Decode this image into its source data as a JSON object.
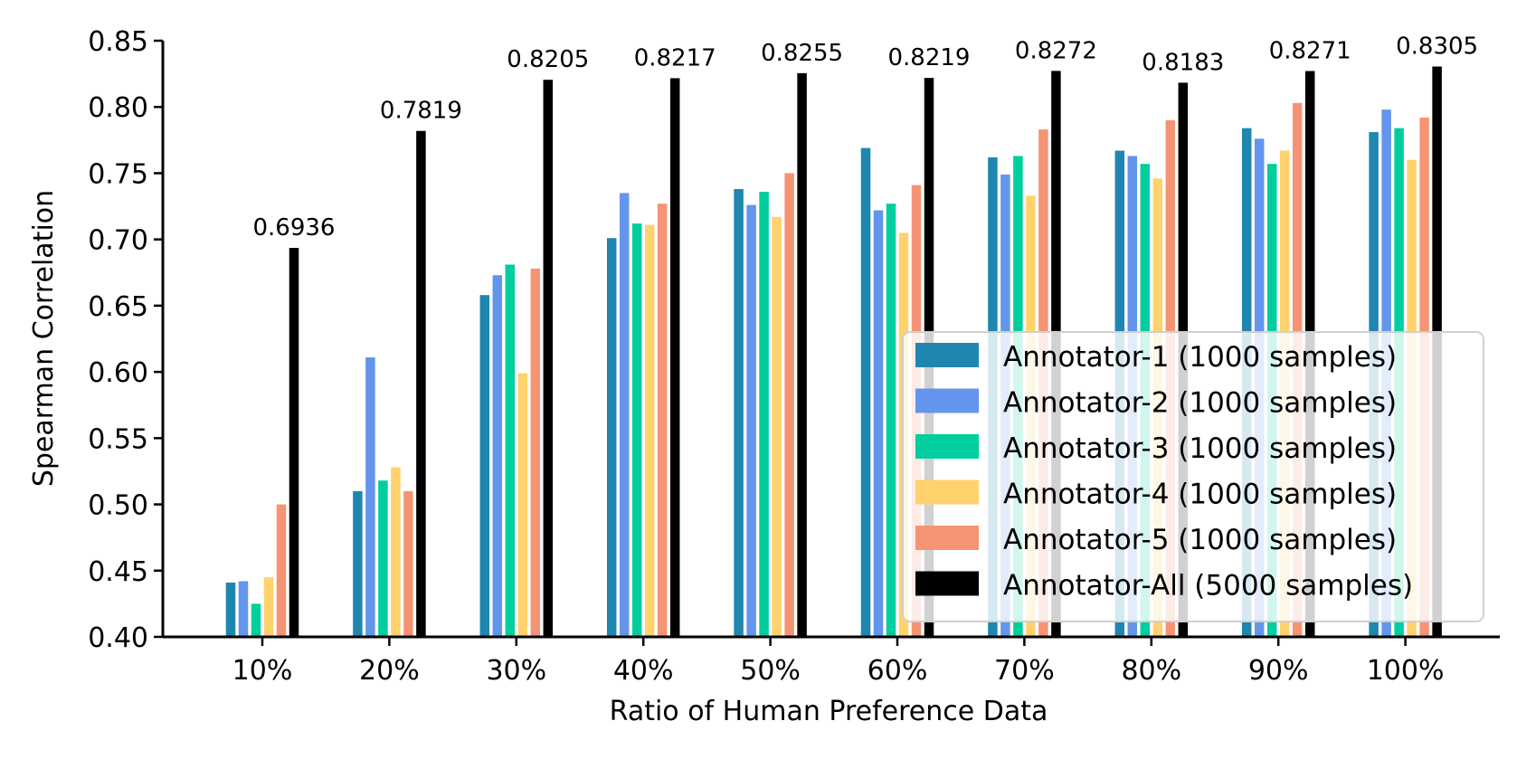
{
  "chart_data": {
    "type": "bar",
    "xlabel": "Ratio of Human Preference Data",
    "ylabel": "Spearman Correlation",
    "ylim": [
      0.4,
      0.85
    ],
    "yticks": [
      "0.40",
      "0.45",
      "0.50",
      "0.55",
      "0.60",
      "0.65",
      "0.70",
      "0.75",
      "0.80",
      "0.85"
    ],
    "categories": [
      "10%",
      "20%",
      "30%",
      "40%",
      "50%",
      "60%",
      "70%",
      "80%",
      "90%",
      "100%"
    ],
    "series": [
      {
        "name": "Annotator-1 (1000 samples)",
        "color": "#1f86b0",
        "values": [
          0.441,
          0.51,
          0.658,
          0.701,
          0.738,
          0.769,
          0.762,
          0.767,
          0.784,
          0.781
        ]
      },
      {
        "name": "Annotator-2 (1000 samples)",
        "color": "#6495ed",
        "values": [
          0.442,
          0.611,
          0.673,
          0.735,
          0.726,
          0.722,
          0.749,
          0.763,
          0.776,
          0.798
        ]
      },
      {
        "name": "Annotator-3 (1000 samples)",
        "color": "#00ce9e",
        "values": [
          0.425,
          0.518,
          0.681,
          0.712,
          0.736,
          0.727,
          0.763,
          0.757,
          0.757,
          0.784
        ]
      },
      {
        "name": "Annotator-4 (1000 samples)",
        "color": "#ffd26e",
        "values": [
          0.445,
          0.528,
          0.599,
          0.711,
          0.717,
          0.705,
          0.733,
          0.746,
          0.767,
          0.76
        ]
      },
      {
        "name": "Annotator-5 (1000 samples)",
        "color": "#f59475",
        "values": [
          0.5,
          0.51,
          0.678,
          0.727,
          0.75,
          0.741,
          0.783,
          0.79,
          0.803,
          0.792
        ]
      },
      {
        "name": "Annotator-All (5000 samples)",
        "color": "#000000",
        "values": [
          0.6936,
          0.7819,
          0.8205,
          0.8217,
          0.8255,
          0.8219,
          0.8272,
          0.8183,
          0.8271,
          0.8305
        ],
        "labels": [
          "0.6936",
          "0.7819",
          "0.8205",
          "0.8217",
          "0.8255",
          "0.8219",
          "0.8272",
          "0.8183",
          "0.8271",
          "0.8305"
        ]
      }
    ],
    "legend": "lower-right",
    "grid": false
  }
}
